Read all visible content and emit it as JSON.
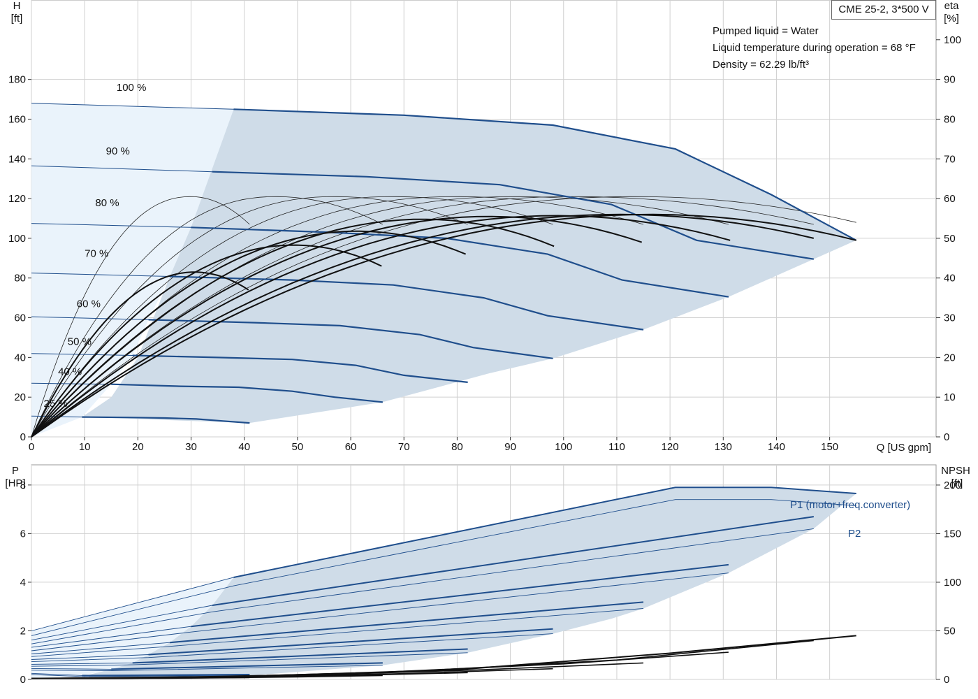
{
  "info": {
    "pump": "CME 25-2, 3*500 V",
    "liquid": "Pumped liquid = Water",
    "temperature": "Liquid temperature during operation = 68 °F",
    "density": "Density = 62.29 lb/ft³"
  },
  "chart_data": [
    {
      "type": "line",
      "name": "head_efficiency",
      "xlabel": "Q [US gpm]",
      "ylabel": [
        "H",
        "[ft]"
      ],
      "y2label": [
        "eta",
        "[%]"
      ],
      "xlim": [
        0,
        170
      ],
      "ylim": [
        0,
        220
      ],
      "y2lim": [
        0,
        110
      ],
      "xticks": [
        0,
        10,
        20,
        30,
        40,
        50,
        60,
        70,
        80,
        90,
        100,
        110,
        120,
        130,
        140,
        150
      ],
      "yticks": [
        0,
        20,
        40,
        60,
        80,
        100,
        120,
        140,
        160,
        180
      ],
      "y2ticks": [
        0,
        10,
        20,
        30,
        40,
        50,
        60,
        70,
        80,
        90,
        100
      ],
      "grid": true,
      "speed_curves": [
        {
          "label": "100 %",
          "label_at": [
            16,
            170
          ],
          "points": [
            [
              0,
              168
            ],
            [
              38,
              165
            ],
            [
              70,
              162
            ],
            [
              98,
              157
            ],
            [
              121,
              145
            ],
            [
              139,
              122
            ],
            [
              155,
              99
            ]
          ],
          "thick_from": 38
        },
        {
          "label": "90 %",
          "label_at": [
            14,
            138
          ],
          "points": [
            [
              0,
              136.5
            ],
            [
              34,
              133.5
            ],
            [
              63,
              131
            ],
            [
              88,
              127
            ],
            [
              109,
              117
            ],
            [
              125,
              99
            ],
            [
              147,
              89.5
            ]
          ],
          "thick_from": 34
        },
        {
          "label": "80 %",
          "label_at": [
            12,
            112
          ],
          "points": [
            [
              0,
              107.5
            ],
            [
              30,
              105.5
            ],
            [
              56,
              103
            ],
            [
              78,
              100
            ],
            [
              97,
              92
            ],
            [
              111,
              79
            ],
            [
              131,
              70.5
            ]
          ],
          "thick_from": 30
        },
        {
          "label": "70 %",
          "label_at": [
            10,
            86.5
          ],
          "points": [
            [
              0,
              82.5
            ],
            [
              26,
              80.8
            ],
            [
              49,
              79
            ],
            [
              68,
              76.5
            ],
            [
              85,
              70
            ],
            [
              97,
              61
            ],
            [
              115,
              54
            ]
          ],
          "thick_from": 26
        },
        {
          "label": "60 %",
          "label_at": [
            8.5,
            61
          ],
          "points": [
            [
              0,
              60.5
            ],
            [
              22,
              59
            ],
            [
              42,
              57.5
            ],
            [
              58,
              56
            ],
            [
              73,
              51.5
            ],
            [
              83,
              45
            ],
            [
              98,
              39.5
            ]
          ],
          "thick_from": 22
        },
        {
          "label": "50 %",
          "label_at": [
            6.8,
            42
          ],
          "points": [
            [
              0,
              42
            ],
            [
              19,
              41
            ],
            [
              35,
              40
            ],
            [
              49,
              39
            ],
            [
              61,
              36
            ],
            [
              70,
              31
            ],
            [
              82,
              27.5
            ]
          ],
          "thick_from": 19
        },
        {
          "label": "40 %",
          "label_at": [
            5,
            27
          ],
          "points": [
            [
              0,
              27
            ],
            [
              15,
              26.5
            ],
            [
              28,
              25.5
            ],
            [
              39,
              25
            ],
            [
              49,
              23
            ],
            [
              57,
              20
            ],
            [
              66,
              17.5
            ]
          ],
          "thick_from": 15
        },
        {
          "label": "25 %",
          "label_at": [
            2.3,
            11
          ],
          "points": [
            [
              0,
              10.5
            ],
            [
              9.5,
              10
            ],
            [
              18,
              9.8
            ],
            [
              25,
              9.5
            ],
            [
              31,
              9
            ],
            [
              36,
              8
            ],
            [
              41,
              7
            ]
          ],
          "thick_from": 9.5
        }
      ],
      "eta_curves_thick": [
        {
          "q_max": 40.8,
          "eta_max": 41.5,
          "eta_end": 37
        },
        {
          "q_max": 65.8,
          "eta_max": 48.3,
          "eta_end": 43
        },
        {
          "q_max": 81.6,
          "eta_max": 51.8,
          "eta_end": 46
        },
        {
          "q_max": 98.2,
          "eta_max": 54.8,
          "eta_end": 48
        },
        {
          "q_max": 114.7,
          "eta_max": 55.5,
          "eta_end": 49
        },
        {
          "q_max": 131.3,
          "eta_max": 55.7,
          "eta_end": 49.5
        },
        {
          "q_max": 147.0,
          "eta_max": 56.0,
          "eta_end": 50
        },
        {
          "q_max": 155.0,
          "eta_max": 56.0,
          "eta_end": 49.5
        }
      ],
      "eta_curves_thin": [
        {
          "q_max": 41,
          "q_peak": 30.0,
          "eta_peak": 60.5,
          "eta_end": 53.5
        },
        {
          "q_max": 66,
          "q_peak": 46.0,
          "eta_peak": 60.5,
          "eta_end": 53.5
        },
        {
          "q_max": 82,
          "q_peak": 57.0,
          "eta_peak": 60.5,
          "eta_end": 53.5
        },
        {
          "q_max": 98,
          "q_peak": 68.0,
          "eta_peak": 60.5,
          "eta_end": 53.5
        },
        {
          "q_max": 115,
          "q_peak": 80.0,
          "eta_peak": 60.5,
          "eta_end": 53.5
        },
        {
          "q_max": 131,
          "q_peak": 91.0,
          "eta_peak": 60.5,
          "eta_end": 53.5
        },
        {
          "q_max": 147,
          "q_peak": 102.0,
          "eta_peak": 60.5,
          "eta_end": 53.5
        },
        {
          "q_max": 155,
          "q_peak": 114.0,
          "eta_peak": 60.5,
          "eta_end": 54
        }
      ]
    },
    {
      "type": "line",
      "name": "power_npsh",
      "ylabel": [
        "P",
        "[HP]"
      ],
      "y2label": [
        "NPSH",
        "[ft]"
      ],
      "xlim": [
        0,
        170
      ],
      "ylim": [
        0,
        8.83
      ],
      "y2lim": [
        0,
        220.8
      ],
      "yticks": [
        0,
        2,
        4,
        6,
        8
      ],
      "y2ticks": [
        0,
        50,
        100,
        150,
        200
      ],
      "grid": true,
      "series_labels": {
        "p1": "P1 (motor+freq.converter)",
        "p2": "P2"
      },
      "p1_curves": [
        {
          "points": [
            [
              0,
              2.0
            ],
            [
              38,
              4.2
            ],
            [
              121,
              7.9
            ],
            [
              139,
              7.9
            ],
            [
              155,
              7.65
            ]
          ],
          "thick_from": 38
        },
        {
          "points": [
            [
              0,
              1.62
            ],
            [
              34,
              3.05
            ],
            [
              147,
              6.7
            ]
          ],
          "thick_from": 34
        },
        {
          "points": [
            [
              0,
              1.32
            ],
            [
              30,
              2.18
            ],
            [
              131,
              4.72
            ]
          ],
          "thick_from": 30
        },
        {
          "points": [
            [
              0,
              1.05
            ],
            [
              26,
              1.52
            ],
            [
              115,
              3.18
            ]
          ],
          "thick_from": 26
        },
        {
          "points": [
            [
              0,
              0.82
            ],
            [
              22,
              1.02
            ],
            [
              98,
              2.08
            ]
          ],
          "thick_from": 22
        },
        {
          "points": [
            [
              0,
              0.62
            ],
            [
              19,
              0.68
            ],
            [
              82,
              1.25
            ]
          ],
          "thick_from": 19
        },
        {
          "points": [
            [
              0,
              0.45
            ],
            [
              15,
              0.42
            ],
            [
              66,
              0.68
            ]
          ],
          "thick_from": 15
        },
        {
          "points": [
            [
              0,
              0.25
            ],
            [
              9.5,
              0.16
            ],
            [
              41,
              0.2
            ]
          ],
          "thick_from": 9.5
        }
      ],
      "p2_curves": [
        {
          "points": [
            [
              0,
              1.8
            ],
            [
              38,
              3.85
            ],
            [
              121,
              7.4
            ],
            [
              139,
              7.4
            ],
            [
              155,
              7.15
            ]
          ]
        },
        {
          "points": [
            [
              0,
              1.46
            ],
            [
              34,
              2.78
            ],
            [
              147,
              6.2
            ]
          ]
        },
        {
          "points": [
            [
              0,
              1.18
            ],
            [
              30,
              1.95
            ],
            [
              131,
              4.38
            ]
          ]
        },
        {
          "points": [
            [
              0,
              0.94
            ],
            [
              26,
              1.36
            ],
            [
              115,
              2.92
            ]
          ]
        },
        {
          "points": [
            [
              0,
              0.73
            ],
            [
              22,
              0.9
            ],
            [
              98,
              1.88
            ]
          ]
        },
        {
          "points": [
            [
              0,
              0.54
            ],
            [
              19,
              0.6
            ],
            [
              82,
              1.1
            ]
          ]
        },
        {
          "points": [
            [
              0,
              0.38
            ],
            [
              15,
              0.36
            ],
            [
              66,
              0.58
            ]
          ]
        },
        {
          "points": [
            [
              0,
              0.2
            ],
            [
              9.5,
              0.12
            ],
            [
              41,
              0.16
            ]
          ]
        }
      ],
      "npsh_curves": [
        {
          "points": [
            [
              0,
              1
            ],
            [
              40,
              3
            ],
            [
              80,
              10
            ],
            [
              120,
              27
            ],
            [
              155,
              45
            ]
          ]
        },
        {
          "points": [
            [
              0,
              1
            ],
            [
              30,
              2
            ],
            [
              70,
              8
            ],
            [
              110,
              20
            ],
            [
              147,
              40
            ]
          ]
        },
        {
          "points": [
            [
              0,
              1
            ],
            [
              25,
              2
            ],
            [
              60,
              6
            ],
            [
              100,
              16
            ],
            [
              131,
              28
            ]
          ]
        },
        {
          "points": [
            [
              0,
              1
            ],
            [
              20,
              1.5
            ],
            [
              50,
              4
            ],
            [
              85,
              10
            ],
            [
              115,
              17
            ]
          ]
        },
        {
          "points": [
            [
              0,
              1
            ],
            [
              18,
              1.2
            ],
            [
              40,
              2.5
            ],
            [
              70,
              6
            ],
            [
              98,
              11
            ]
          ]
        },
        {
          "points": [
            [
              0,
              1
            ],
            [
              15,
              1
            ],
            [
              35,
              2
            ],
            [
              60,
              4
            ],
            [
              82,
              7
            ]
          ]
        },
        {
          "points": [
            [
              0,
              1
            ],
            [
              12,
              1
            ],
            [
              30,
              1.5
            ],
            [
              50,
              2.5
            ],
            [
              66,
              4
            ]
          ]
        },
        {
          "points": [
            [
              0,
              1
            ],
            [
              9.5,
              1
            ],
            [
              25,
              1.2
            ],
            [
              41,
              1.8
            ]
          ]
        }
      ]
    }
  ]
}
